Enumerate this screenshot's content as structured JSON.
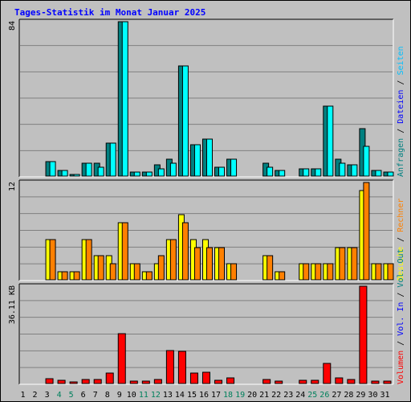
{
  "title": "Tages-Statistik im Monat Januar 2025",
  "colors": {
    "title": "#0000ff",
    "hits": "#008080",
    "files": "#00ffff",
    "pages": "#00c0ff",
    "visits": "#ffff00",
    "sites": "#ff8000",
    "kb": "#ff0000",
    "weekend_day": "#00805c",
    "weekday": "#000000",
    "panel_bg": "#c0c0c0",
    "grid": "#808080"
  },
  "chart_data": [
    {
      "type": "bar",
      "panel": "top",
      "ylabel": "84",
      "ylim": [
        0,
        84
      ],
      "legend": [
        {
          "text": "Anfragen",
          "color": "#008080"
        },
        {
          "text": "Dateien",
          "color": "#0000ff"
        },
        {
          "text": "Seiten",
          "color": "#00c0ff"
        }
      ],
      "x": [
        1,
        2,
        3,
        4,
        5,
        6,
        7,
        8,
        9,
        10,
        11,
        12,
        13,
        14,
        15,
        16,
        17,
        18,
        19,
        20,
        21,
        22,
        23,
        24,
        25,
        26,
        27,
        28,
        29,
        30,
        31
      ],
      "series": [
        {
          "name": "Anfragen",
          "color": "#008080",
          "values": [
            0,
            0,
            8,
            3,
            1,
            7,
            7,
            18,
            84,
            2,
            2,
            6,
            9,
            60,
            17,
            20,
            5,
            9,
            0,
            0,
            7,
            3,
            0,
            4,
            4,
            38,
            9,
            6,
            26,
            3,
            2
          ]
        },
        {
          "name": "Dateien",
          "color": "#00ffff",
          "values": [
            0,
            0,
            8,
            3,
            1,
            7,
            5,
            18,
            84,
            2,
            2,
            4,
            7,
            60,
            17,
            20,
            5,
            9,
            0,
            0,
            5,
            3,
            0,
            4,
            4,
            38,
            7,
            6,
            16,
            3,
            2
          ]
        }
      ]
    },
    {
      "type": "bar",
      "panel": "middle",
      "ylabel": "12",
      "ylim": [
        0,
        12
      ],
      "legend": [
        {
          "text": "Besuche",
          "color": "#ffff00"
        },
        {
          "text": "Rechner",
          "color": "#ff8000"
        }
      ],
      "x": [
        1,
        2,
        3,
        4,
        5,
        6,
        7,
        8,
        9,
        10,
        11,
        12,
        13,
        14,
        15,
        16,
        17,
        18,
        19,
        20,
        21,
        22,
        23,
        24,
        25,
        26,
        27,
        28,
        29,
        30,
        31
      ],
      "series": [
        {
          "name": "Besuche",
          "color": "#ffff00",
          "values": [
            0,
            0,
            5,
            1,
            1,
            5,
            3,
            3,
            7,
            2,
            1,
            2,
            5,
            8,
            5,
            5,
            4,
            2,
            0,
            0,
            3,
            1,
            0,
            2,
            2,
            2,
            4,
            4,
            11,
            2,
            2
          ]
        },
        {
          "name": "Rechner",
          "color": "#ff8000",
          "values": [
            0,
            0,
            5,
            1,
            1,
            5,
            3,
            2,
            7,
            2,
            1,
            3,
            5,
            7,
            4,
            4,
            4,
            2,
            0,
            0,
            3,
            1,
            0,
            2,
            2,
            2,
            4,
            4,
            12,
            2,
            2
          ]
        }
      ]
    },
    {
      "type": "bar",
      "panel": "bottom",
      "ylabel": "36.11 KB",
      "ylim": [
        0,
        36.11
      ],
      "legend": [
        {
          "text": "Volumen",
          "color": "#ff0000"
        },
        {
          "text": "Vol. In",
          "color": "#0000ff"
        },
        {
          "text": "Vol. Out",
          "color": "#008080"
        }
      ],
      "x": [
        1,
        2,
        3,
        4,
        5,
        6,
        7,
        8,
        9,
        10,
        11,
        12,
        13,
        14,
        15,
        16,
        17,
        18,
        19,
        20,
        21,
        22,
        23,
        24,
        25,
        26,
        27,
        28,
        29,
        30,
        31
      ],
      "series": [
        {
          "name": "Volumen",
          "color": "#ff0000",
          "values": [
            0,
            0,
            1.8,
            1.2,
            0.6,
            1.6,
            1.4,
            3.9,
            18.5,
            1.0,
            1.0,
            1.6,
            12.1,
            11.9,
            4.0,
            4.3,
            1.3,
            2.0,
            0,
            0,
            1.6,
            0.8,
            0,
            1.1,
            1.1,
            7.5,
            2.1,
            1.6,
            36.11,
            1.0,
            1.0
          ]
        }
      ]
    }
  ],
  "xaxis": {
    "labels": [
      "1",
      "2",
      "3",
      "4",
      "5",
      "6",
      "7",
      "8",
      "9",
      "10",
      "11",
      "12",
      "13",
      "14",
      "15",
      "16",
      "17",
      "18",
      "19",
      "20",
      "21",
      "22",
      "23",
      "24",
      "25",
      "26",
      "27",
      "28",
      "29",
      "30",
      "31"
    ],
    "weekend": [
      4,
      5,
      11,
      12,
      18,
      19,
      25,
      26
    ]
  },
  "separators": [
    " / "
  ]
}
